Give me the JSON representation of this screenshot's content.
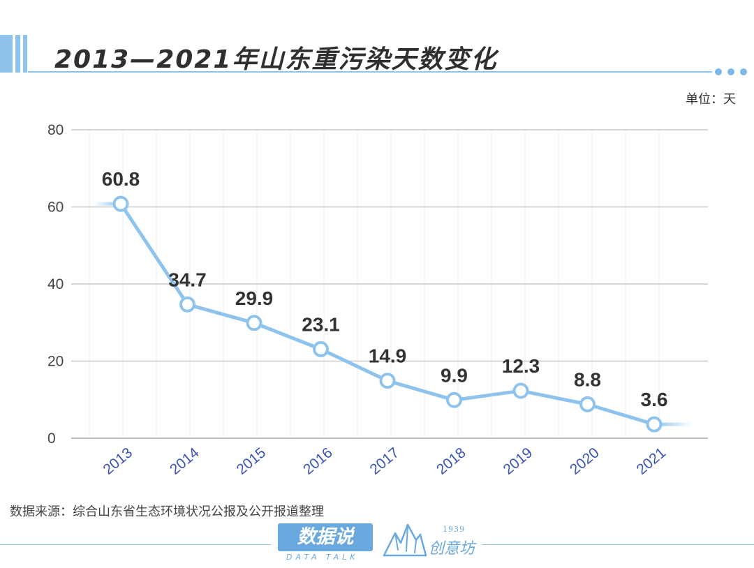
{
  "title": "2013—2021年山东重污染天数变化",
  "unit": "单位：天",
  "source": "数据来源：综合山东省生态环境状况公报及公开报道整理",
  "logos": {
    "main": "数据说",
    "sub": "DATA TALK",
    "year": "1939",
    "brand": "创意坊"
  },
  "colors": {
    "accent": "#8ec3ee",
    "line": "#8ec3ee",
    "tick_label": "#3a53b8",
    "value_label": "#333333"
  },
  "chart_data": {
    "type": "line",
    "title": "2013—2021年山东重污染天数变化",
    "xlabel": "",
    "ylabel": "单位：天",
    "categories": [
      "2013",
      "2014",
      "2015",
      "2016",
      "2017",
      "2018",
      "2019",
      "2020",
      "2021"
    ],
    "values": [
      60.8,
      34.7,
      29.9,
      23.1,
      14.9,
      9.9,
      12.3,
      8.8,
      3.6
    ],
    "value_labels": [
      "60.8",
      "34.7",
      "29.9",
      "23.1",
      "14.9",
      "9.9",
      "12.3",
      "8.8",
      "3.6"
    ],
    "ylim": [
      0,
      80
    ],
    "yticks": [
      0,
      20,
      40,
      60,
      80
    ],
    "grid": true
  }
}
